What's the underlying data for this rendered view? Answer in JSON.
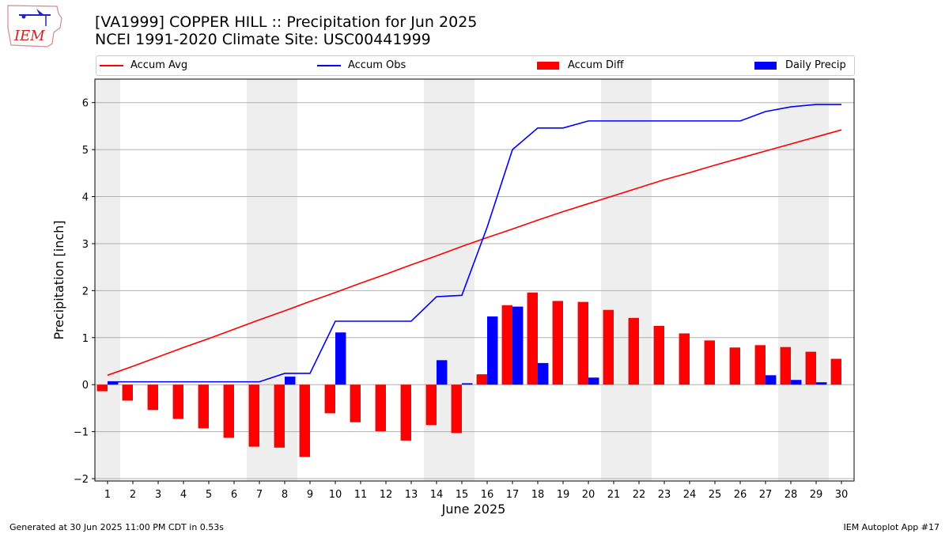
{
  "title_line1": "[VA1999] COPPER HILL :: Precipitation for Jun 2025",
  "title_line2": "NCEI 1991-2020 Climate Site: USC00441999",
  "footer_left": "Generated at 30 Jun 2025 11:00 PM CDT in 0.53s",
  "footer_right": "IEM Autoplot App #17",
  "logo_text": "IEM",
  "legend": [
    {
      "label": "Accum Avg",
      "kind": "line",
      "color": "#ff0000"
    },
    {
      "label": "Accum Obs",
      "kind": "line",
      "color": "#0000ff"
    },
    {
      "label": "Accum Diff",
      "kind": "bar",
      "color": "#ff0000"
    },
    {
      "label": "Daily Precip",
      "kind": "bar",
      "color": "#0000ff"
    }
  ],
  "chart_data": {
    "type": "bar",
    "xlabel": "June 2025",
    "ylabel": "Precipitation [inch]",
    "x": [
      1,
      2,
      3,
      4,
      5,
      6,
      7,
      8,
      9,
      10,
      11,
      12,
      13,
      14,
      15,
      16,
      17,
      18,
      19,
      20,
      21,
      22,
      23,
      24,
      25,
      26,
      27,
      28,
      29,
      30
    ],
    "ylim": [
      -2.05,
      6.5
    ],
    "yticks": [
      -2,
      -1,
      0,
      1,
      2,
      3,
      4,
      5,
      6
    ],
    "weekend_shading": [
      [
        1,
        1
      ],
      [
        7,
        8
      ],
      [
        14,
        15
      ],
      [
        21,
        22
      ],
      [
        28,
        29
      ]
    ],
    "grid": "horizontal",
    "legend_position": "top",
    "series": [
      {
        "name": "Accum Avg",
        "kind": "line",
        "color": "#ff0000",
        "values": [
          0.2,
          0.39,
          0.59,
          0.79,
          0.98,
          1.18,
          1.38,
          1.57,
          1.77,
          1.96,
          2.16,
          2.35,
          2.55,
          2.74,
          2.94,
          3.13,
          3.31,
          3.5,
          3.68,
          3.85,
          4.02,
          4.19,
          4.36,
          4.51,
          4.67,
          4.82,
          4.97,
          5.12,
          5.27,
          5.42
        ]
      },
      {
        "name": "Accum Obs",
        "kind": "line",
        "color": "#0000ff",
        "values": [
          0.06,
          0.06,
          0.06,
          0.06,
          0.06,
          0.06,
          0.06,
          0.24,
          0.24,
          1.35,
          1.35,
          1.35,
          1.35,
          1.87,
          1.9,
          3.35,
          5.0,
          5.46,
          5.46,
          5.61,
          5.61,
          5.61,
          5.61,
          5.61,
          5.61,
          5.61,
          5.81,
          5.91,
          5.96,
          5.96
        ]
      },
      {
        "name": "Accum Diff",
        "kind": "bar",
        "color": "#ff0000",
        "values": [
          -0.14,
          -0.34,
          -0.54,
          -0.73,
          -0.93,
          -1.13,
          -1.32,
          -1.34,
          -1.54,
          -0.61,
          -0.8,
          -0.99,
          -1.19,
          -0.86,
          -1.03,
          0.22,
          1.69,
          1.96,
          1.78,
          1.76,
          1.59,
          1.42,
          1.25,
          1.09,
          0.94,
          0.79,
          0.84,
          0.8,
          0.7,
          0.55
        ]
      },
      {
        "name": "Daily Precip",
        "kind": "bar",
        "color": "#0000ff",
        "values": [
          0.06,
          0.0,
          0.0,
          0.0,
          0.0,
          0.0,
          0.0,
          0.17,
          0.0,
          1.11,
          0.0,
          0.0,
          0.0,
          0.52,
          0.03,
          1.45,
          1.66,
          0.46,
          0.0,
          0.15,
          0.0,
          0.0,
          0.0,
          0.0,
          0.0,
          0.0,
          0.2,
          0.1,
          0.05,
          0.0
        ]
      }
    ]
  }
}
